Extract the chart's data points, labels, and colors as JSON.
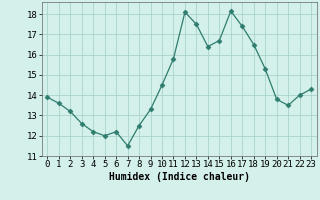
{
  "x": [
    0,
    1,
    2,
    3,
    4,
    5,
    6,
    7,
    8,
    9,
    10,
    11,
    12,
    13,
    14,
    15,
    16,
    17,
    18,
    19,
    20,
    21,
    22,
    23
  ],
  "y": [
    13.9,
    13.6,
    13.2,
    12.6,
    12.2,
    12.0,
    12.2,
    11.5,
    12.5,
    13.3,
    14.5,
    15.8,
    18.1,
    17.5,
    16.4,
    16.7,
    18.15,
    17.4,
    16.5,
    15.3,
    13.8,
    13.5,
    14.0,
    14.3
  ],
  "line_color": "#2e7d6e",
  "marker": "D",
  "marker_size": 2.5,
  "bg_color": "#d4f0eb",
  "grid_color": "#aad4cc",
  "xlabel": "Humidex (Indice chaleur)",
  "ylim": [
    11,
    18.6
  ],
  "yticks": [
    11,
    12,
    13,
    14,
    15,
    16,
    17,
    18
  ],
  "xlim": [
    -0.5,
    23.5
  ],
  "xticks": [
    0,
    1,
    2,
    3,
    4,
    5,
    6,
    7,
    8,
    9,
    10,
    11,
    12,
    13,
    14,
    15,
    16,
    17,
    18,
    19,
    20,
    21,
    22,
    23
  ],
  "label_fontsize": 7,
  "tick_fontsize": 6.5
}
